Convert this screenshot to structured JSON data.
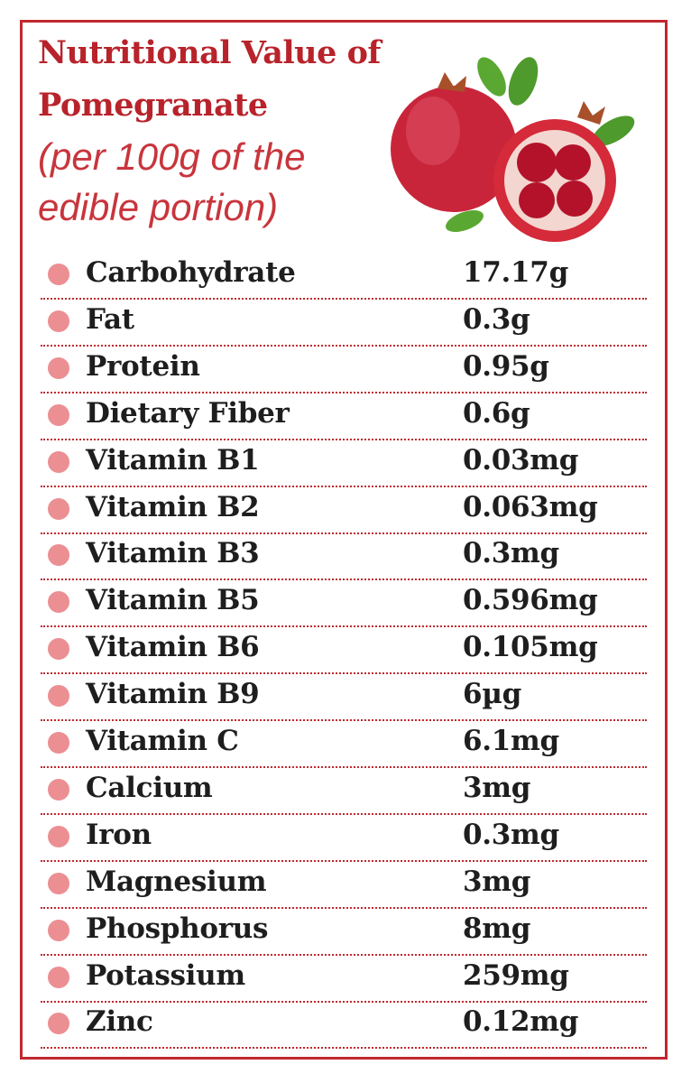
{
  "header": {
    "title_lines": [
      "Nutritional Value of",
      "Pomegranate"
    ],
    "subtitle_lines": [
      "(per 100g of the",
      "edible portion)"
    ]
  },
  "table": {
    "rows": [
      [
        "Carbohydrate",
        "17.17g"
      ],
      [
        "Fat",
        "0.3g"
      ],
      [
        "Protein",
        "0.95g"
      ],
      [
        "Dietary Fiber",
        "0.6g"
      ],
      [
        "Vitamin B1",
        "0.03mg"
      ],
      [
        "Vitamin B2",
        "0.063mg"
      ],
      [
        "Vitamin B3",
        "0.3mg"
      ],
      [
        "Vitamin B5",
        "0.596mg"
      ],
      [
        "Vitamin B6",
        "0.105mg"
      ],
      [
        "Vitamin B9",
        "6µg"
      ],
      [
        "Vitamin C",
        "6.1mg"
      ],
      [
        "Calcium",
        "3mg"
      ],
      [
        "Iron",
        "0.3mg"
      ],
      [
        "Magnesium",
        "3mg"
      ],
      [
        "Phosphorus",
        "8mg"
      ],
      [
        "Potassium",
        "259mg"
      ],
      [
        "Zinc",
        "0.12mg"
      ]
    ]
  }
}
